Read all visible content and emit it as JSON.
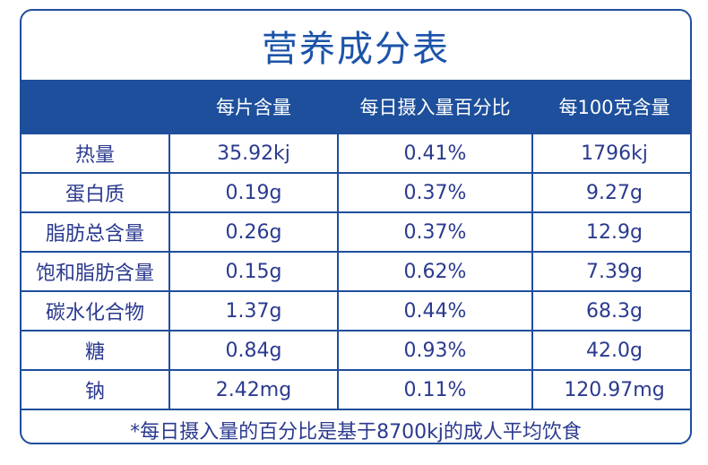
{
  "title": "营养成分表",
  "headers": [
    "",
    "每片含量",
    "每日摄入量百分比",
    "每100克含量"
  ],
  "rows": [
    [
      "热量",
      "35.92kj",
      "0.41%",
      "1796kj"
    ],
    [
      "蛋白质",
      "0.19g",
      "0.37%",
      "9.27g"
    ],
    [
      "脂肪总含量",
      "0.26g",
      "0.37%",
      "12.9g"
    ],
    [
      "饱和脂肪含量",
      "0.15g",
      "0.62%",
      "7.39g"
    ],
    [
      "碳水化合物",
      "1.37g",
      "0.44%",
      "68.3g"
    ],
    [
      "糖",
      "0.84g",
      "0.93%",
      "42.0g"
    ],
    [
      "钠",
      "2.42mg",
      "0.11%",
      "120.97mg"
    ]
  ],
  "footnote": "*每日摄入量的百分比是基于8700kj的成人平均饮食",
  "colors": {
    "accent": "#1d4f9c",
    "text": "#2b3a8f"
  }
}
